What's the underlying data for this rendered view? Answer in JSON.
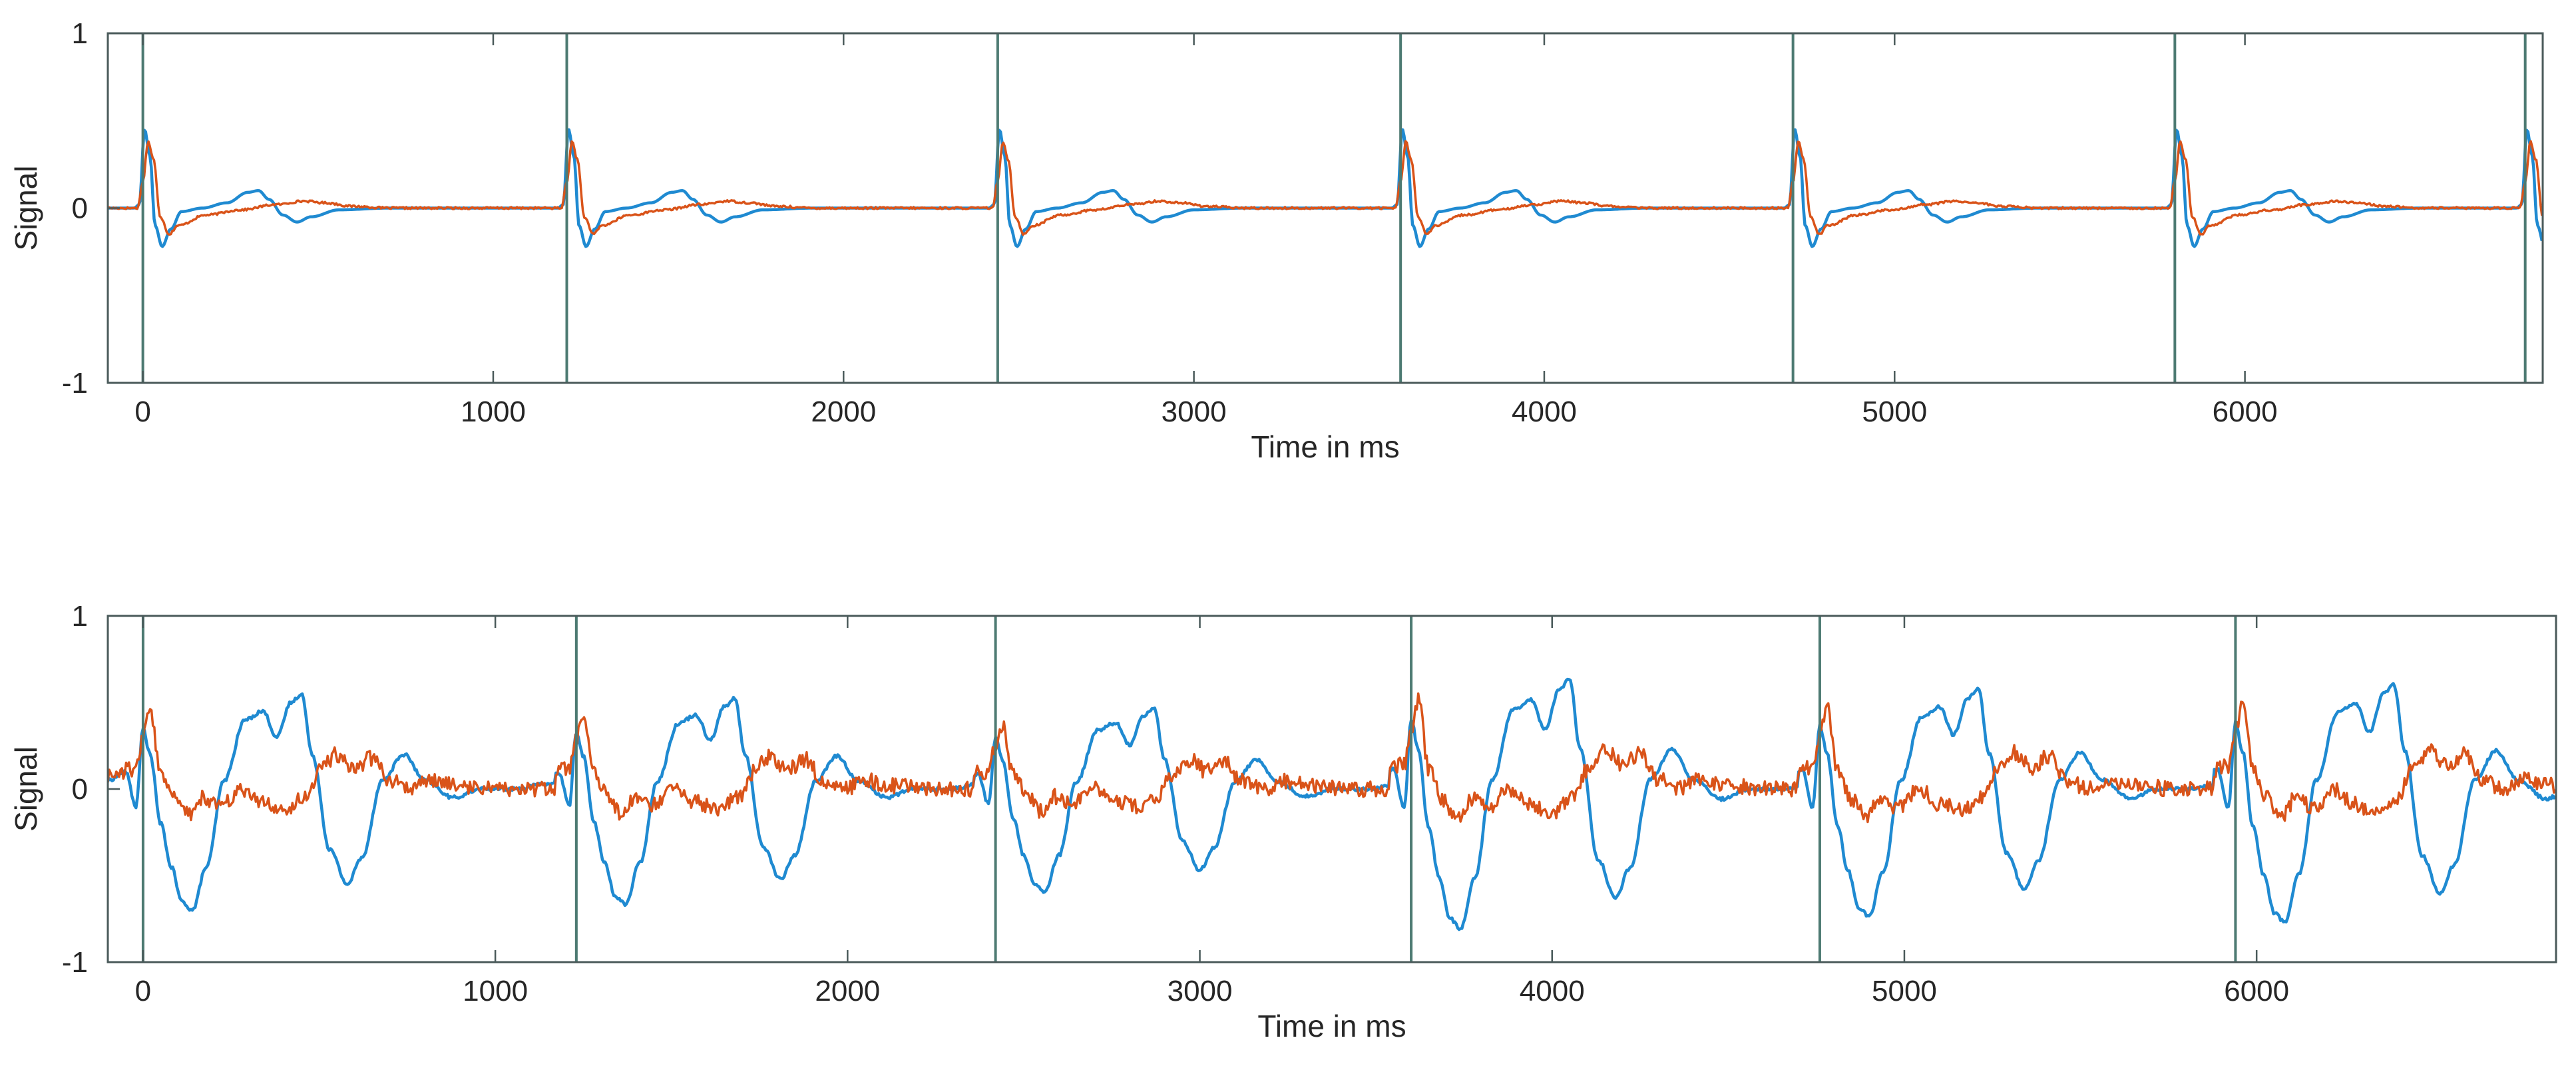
{
  "chart_data": [
    {
      "type": "line",
      "title": "",
      "xlabel": "Time in ms",
      "ylabel": "Signal",
      "xlim": [
        -100,
        6850
      ],
      "ylim": [
        -1,
        1
      ],
      "xticks": [
        0,
        1000,
        2000,
        3000,
        4000,
        5000,
        6000
      ],
      "xtick_labels": [
        "0",
        "1000",
        "2000",
        "3000",
        "4000",
        "5000",
        "6000"
      ],
      "yticks": [
        -1,
        0,
        1
      ],
      "ytick_labels": [
        "-1",
        "0",
        "1"
      ],
      "markers": {
        "color": "#4d7a72",
        "x": [
          0,
          1210,
          2440,
          3590,
          4710,
          5800,
          6800
        ]
      },
      "series": [
        {
          "name": "blue",
          "color": "#1f8ad1",
          "x": [
            -100,
            -25,
            -10,
            5,
            20,
            35,
            55,
            80,
            110,
            170,
            240,
            300,
            330,
            360,
            400,
            440,
            480,
            560,
            700,
            1100
          ],
          "y": [
            0,
            0,
            0.02,
            0.45,
            0.3,
            -0.1,
            -0.22,
            -0.12,
            -0.02,
            0.0,
            0.03,
            0.09,
            0.1,
            0.05,
            -0.04,
            -0.08,
            -0.05,
            -0.01,
            0,
            0
          ]
        },
        {
          "name": "orange",
          "color": "#d95319",
          "x": [
            -100,
            -15,
            0,
            15,
            30,
            50,
            75,
            100,
            180,
            280,
            380,
            460,
            520,
            600,
            700,
            1100
          ],
          "y": [
            0,
            0,
            0.15,
            0.38,
            0.28,
            -0.05,
            -0.15,
            -0.1,
            -0.04,
            -0.01,
            0.02,
            0.04,
            0.03,
            0.01,
            0,
            0
          ]
        }
      ]
    },
    {
      "type": "line",
      "title": "",
      "xlabel": "Time in ms",
      "ylabel": "Signal",
      "xlim": [
        -100,
        6850
      ],
      "ylim": [
        -1,
        1
      ],
      "xticks": [
        0,
        1000,
        2000,
        3000,
        4000,
        5000,
        6000
      ],
      "xtick_labels": [
        "0",
        "1000",
        "2000",
        "3000",
        "4000",
        "5000",
        "6000"
      ],
      "yticks": [
        -1,
        0,
        1
      ],
      "ytick_labels": [
        "-1",
        "0",
        "1"
      ],
      "markers": {
        "color": "#4d7a72",
        "x": [
          0,
          1230,
          2420,
          3600,
          4760,
          5940
        ]
      },
      "series": [
        {
          "name": "blue",
          "color": "#1f8ad1",
          "x": [
            -100,
            -50,
            -20,
            0,
            20,
            50,
            80,
            110,
            140,
            180,
            230,
            290,
            340,
            380,
            420,
            450,
            480,
            530,
            580,
            620,
            680,
            740,
            800,
            880,
            960,
            1050,
            1150
          ],
          "y": [
            0.05,
            0.1,
            -0.1,
            0.35,
            0.2,
            -0.2,
            -0.45,
            -0.65,
            -0.7,
            -0.45,
            0.05,
            0.4,
            0.45,
            0.3,
            0.5,
            0.55,
            0.2,
            -0.35,
            -0.55,
            -0.4,
            0.05,
            0.2,
            0.05,
            -0.05,
            0.0,
            0.0,
            0.03
          ]
        },
        {
          "name": "orange",
          "color": "#d95319",
          "x": [
            -100,
            -20,
            0,
            20,
            50,
            90,
            130,
            170,
            220,
            280,
            340,
            400,
            460,
            500,
            550,
            600,
            650,
            700,
            760,
            820,
            900,
            1000,
            1100,
            1150
          ],
          "y": [
            0.08,
            0.12,
            0.3,
            0.45,
            0.1,
            -0.05,
            -0.15,
            -0.05,
            -0.1,
            0.0,
            -0.08,
            -0.12,
            -0.05,
            0.1,
            0.2,
            0.12,
            0.18,
            0.05,
            0.0,
            0.05,
            0.02,
            0.0,
            0.0,
            0.0
          ]
        }
      ]
    }
  ]
}
